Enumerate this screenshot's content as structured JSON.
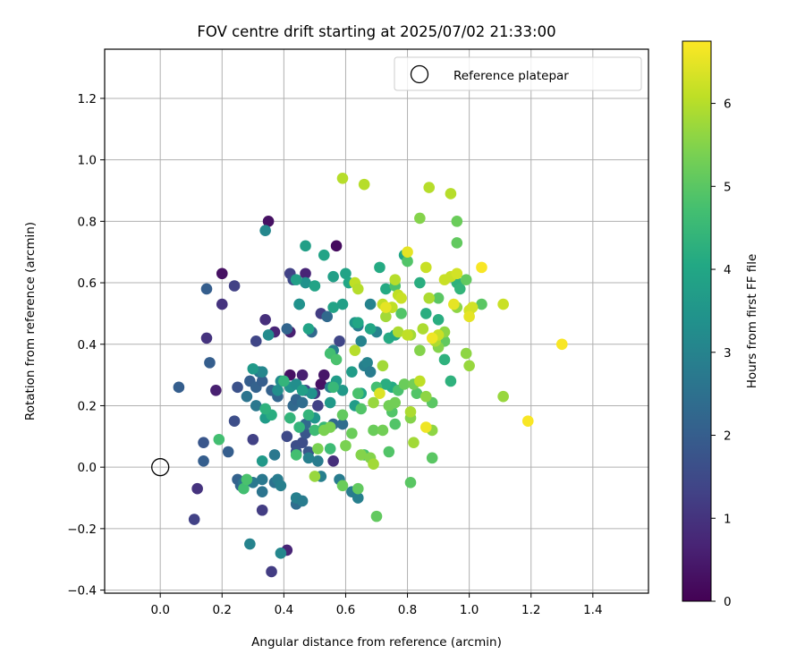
{
  "chart_data": {
    "type": "scatter",
    "title": "FOV centre drift starting at 2025/07/02 21:33:00",
    "xlabel": "Angular distance from reference (arcmin)",
    "ylabel": "Rotation from reference (arcmin)",
    "xlim": [
      -0.18,
      1.58
    ],
    "ylim": [
      -0.41,
      1.36
    ],
    "xticks": [
      0.0,
      0.2,
      0.4,
      0.6,
      0.8,
      1.0,
      1.2,
      1.4
    ],
    "xtick_labels": [
      "0.0",
      "0.2",
      "0.4",
      "0.6",
      "0.8",
      "1.0",
      "1.2",
      "1.4"
    ],
    "yticks": [
      -0.4,
      -0.2,
      0.0,
      0.2,
      0.4,
      0.6,
      0.8,
      1.0,
      1.2
    ],
    "ytick_labels": [
      "−0.4",
      "−0.2",
      "0.0",
      "0.2",
      "0.4",
      "0.6",
      "0.8",
      "1.0",
      "1.2"
    ],
    "grid": true,
    "legend": {
      "placement": "top-right",
      "entries": [
        "Reference platepar"
      ]
    },
    "reference_point": {
      "label": "Reference platepar",
      "x": 0.0,
      "y": 0.0
    },
    "colorbar": {
      "label": "Hours from first FF file",
      "colormap": "viridis",
      "range": [
        0,
        6.75
      ],
      "ticks": [
        0,
        1,
        2,
        3,
        4,
        5,
        6
      ],
      "tick_labels": [
        "0",
        "1",
        "2",
        "3",
        "4",
        "5",
        "6"
      ]
    },
    "points": [
      {
        "x": 0.2,
        "y": 0.63,
        "t": 0.3
      },
      {
        "x": 0.35,
        "y": 0.8,
        "t": 0.3
      },
      {
        "x": 0.57,
        "y": 0.72,
        "t": 0.2
      },
      {
        "x": 0.42,
        "y": 0.3,
        "t": 0.3
      },
      {
        "x": 0.52,
        "y": 0.27,
        "t": 0.3
      },
      {
        "x": 0.53,
        "y": 0.3,
        "t": 0.4
      },
      {
        "x": 0.41,
        "y": -0.27,
        "t": 0.7
      },
      {
        "x": 0.18,
        "y": 0.25,
        "t": 0.6
      },
      {
        "x": 0.46,
        "y": 0.3,
        "t": 0.6
      },
      {
        "x": 0.47,
        "y": 0.63,
        "t": 0.7
      },
      {
        "x": 0.2,
        "y": 0.53,
        "t": 1.0
      },
      {
        "x": 0.34,
        "y": 0.48,
        "t": 0.9
      },
      {
        "x": 0.37,
        "y": 0.44,
        "t": 0.7
      },
      {
        "x": 0.42,
        "y": 0.44,
        "t": 0.6
      },
      {
        "x": 0.52,
        "y": 0.5,
        "t": 1.2
      },
      {
        "x": 0.56,
        "y": 0.02,
        "t": 0.9
      },
      {
        "x": 0.58,
        "y": 0.41,
        "t": 1.4
      },
      {
        "x": 0.36,
        "y": -0.34,
        "t": 1.2
      },
      {
        "x": 0.12,
        "y": -0.07,
        "t": 1.0
      },
      {
        "x": 0.11,
        "y": -0.17,
        "t": 1.3
      },
      {
        "x": 0.15,
        "y": 0.42,
        "t": 1.0
      },
      {
        "x": 0.24,
        "y": 0.59,
        "t": 1.3
      },
      {
        "x": 0.42,
        "y": 0.63,
        "t": 1.3
      },
      {
        "x": 0.43,
        "y": 0.61,
        "t": 1.5
      },
      {
        "x": 0.5,
        "y": 0.24,
        "t": 1.1
      },
      {
        "x": 0.51,
        "y": 0.2,
        "t": 1.3
      },
      {
        "x": 0.47,
        "y": 0.25,
        "t": 1.4
      },
      {
        "x": 0.31,
        "y": 0.41,
        "t": 1.4
      },
      {
        "x": 0.3,
        "y": 0.09,
        "t": 1.3
      },
      {
        "x": 0.33,
        "y": -0.14,
        "t": 1.2
      },
      {
        "x": 0.41,
        "y": 0.1,
        "t": 1.5
      },
      {
        "x": 0.44,
        "y": 0.07,
        "t": 1.6
      },
      {
        "x": 0.46,
        "y": 0.08,
        "t": 1.6
      },
      {
        "x": 0.47,
        "y": 0.11,
        "t": 1.8
      },
      {
        "x": 0.24,
        "y": 0.15,
        "t": 1.6
      },
      {
        "x": 0.25,
        "y": 0.26,
        "t": 1.7
      },
      {
        "x": 0.44,
        "y": 0.05,
        "t": 1.7
      },
      {
        "x": 0.48,
        "y": 0.05,
        "t": 1.8
      },
      {
        "x": 0.06,
        "y": 0.26,
        "t": 2.0
      },
      {
        "x": 0.15,
        "y": 0.58,
        "t": 2.0
      },
      {
        "x": 0.16,
        "y": 0.34,
        "t": 2.0
      },
      {
        "x": 0.14,
        "y": 0.08,
        "t": 1.8
      },
      {
        "x": 0.14,
        "y": 0.02,
        "t": 2.0
      },
      {
        "x": 0.22,
        "y": 0.05,
        "t": 2.0
      },
      {
        "x": 0.25,
        "y": -0.04,
        "t": 2.1
      },
      {
        "x": 0.26,
        "y": -0.06,
        "t": 2.2
      },
      {
        "x": 0.29,
        "y": 0.28,
        "t": 2.0
      },
      {
        "x": 0.31,
        "y": 0.26,
        "t": 2.1
      },
      {
        "x": 0.33,
        "y": 0.28,
        "t": 2.0
      },
      {
        "x": 0.36,
        "y": 0.25,
        "t": 2.1
      },
      {
        "x": 0.38,
        "y": 0.23,
        "t": 2.2
      },
      {
        "x": 0.41,
        "y": 0.45,
        "t": 2.2
      },
      {
        "x": 0.43,
        "y": 0.2,
        "t": 2.3
      },
      {
        "x": 0.44,
        "y": 0.22,
        "t": 2.2
      },
      {
        "x": 0.46,
        "y": 0.21,
        "t": 2.4
      },
      {
        "x": 0.47,
        "y": 0.14,
        "t": 2.3
      },
      {
        "x": 0.49,
        "y": 0.44,
        "t": 2.3
      },
      {
        "x": 0.54,
        "y": 0.49,
        "t": 2.3
      },
      {
        "x": 0.56,
        "y": 0.14,
        "t": 2.3
      },
      {
        "x": 0.59,
        "y": 0.14,
        "t": 2.4
      },
      {
        "x": 0.44,
        "y": -0.12,
        "t": 2.4
      },
      {
        "x": 0.37,
        "y": -0.05,
        "t": 2.5
      },
      {
        "x": 0.33,
        "y": -0.08,
        "t": 2.6
      },
      {
        "x": 0.3,
        "y": -0.05,
        "t": 2.7
      },
      {
        "x": 0.27,
        "y": -0.05,
        "t": 2.6
      },
      {
        "x": 0.33,
        "y": -0.04,
        "t": 2.7
      },
      {
        "x": 0.32,
        "y": 0.31,
        "t": 2.6
      },
      {
        "x": 0.31,
        "y": 0.2,
        "t": 2.7
      },
      {
        "x": 0.28,
        "y": 0.23,
        "t": 2.6
      },
      {
        "x": 0.37,
        "y": 0.04,
        "t": 2.7
      },
      {
        "x": 0.38,
        "y": -0.04,
        "t": 2.8
      },
      {
        "x": 0.39,
        "y": -0.06,
        "t": 2.9
      },
      {
        "x": 0.44,
        "y": -0.1,
        "t": 2.9
      },
      {
        "x": 0.46,
        "y": -0.11,
        "t": 2.8
      },
      {
        "x": 0.48,
        "y": 0.03,
        "t": 2.9
      },
      {
        "x": 0.51,
        "y": 0.02,
        "t": 2.8
      },
      {
        "x": 0.52,
        "y": -0.03,
        "t": 2.9
      },
      {
        "x": 0.45,
        "y": 0.53,
        "t": 2.8
      },
      {
        "x": 0.55,
        "y": 0.26,
        "t": 2.9
      },
      {
        "x": 0.56,
        "y": 0.38,
        "t": 2.9
      },
      {
        "x": 0.58,
        "y": -0.04,
        "t": 2.8
      },
      {
        "x": 0.62,
        "y": -0.08,
        "t": 2.8
      },
      {
        "x": 0.64,
        "y": -0.1,
        "t": 2.9
      },
      {
        "x": 0.64,
        "y": 0.46,
        "t": 2.8
      },
      {
        "x": 0.65,
        "y": 0.41,
        "t": 3.0
      },
      {
        "x": 0.66,
        "y": 0.33,
        "t": 2.9
      },
      {
        "x": 0.67,
        "y": 0.34,
        "t": 3.0
      },
      {
        "x": 0.68,
        "y": 0.31,
        "t": 2.8
      },
      {
        "x": 0.68,
        "y": 0.53,
        "t": 3.0
      },
      {
        "x": 0.7,
        "y": 0.44,
        "t": 3.0
      },
      {
        "x": 0.29,
        "y": -0.25,
        "t": 3.0
      },
      {
        "x": 0.39,
        "y": -0.28,
        "t": 3.1
      },
      {
        "x": 0.34,
        "y": 0.77,
        "t": 3.1
      },
      {
        "x": 0.33,
        "y": 0.31,
        "t": 3.1
      },
      {
        "x": 0.35,
        "y": 0.43,
        "t": 3.2
      },
      {
        "x": 0.38,
        "y": 0.25,
        "t": 3.3
      },
      {
        "x": 0.39,
        "y": 0.28,
        "t": 3.2
      },
      {
        "x": 0.42,
        "y": 0.26,
        "t": 3.4
      },
      {
        "x": 0.44,
        "y": 0.27,
        "t": 3.3
      },
      {
        "x": 0.45,
        "y": 0.53,
        "t": 3.4
      },
      {
        "x": 0.47,
        "y": 0.6,
        "t": 3.4
      },
      {
        "x": 0.49,
        "y": 0.24,
        "t": 3.4
      },
      {
        "x": 0.5,
        "y": 0.16,
        "t": 3.5
      },
      {
        "x": 0.55,
        "y": 0.21,
        "t": 3.6
      },
      {
        "x": 0.57,
        "y": 0.28,
        "t": 3.7
      },
      {
        "x": 0.59,
        "y": 0.25,
        "t": 3.6
      },
      {
        "x": 0.62,
        "y": 0.31,
        "t": 3.7
      },
      {
        "x": 0.63,
        "y": 0.2,
        "t": 3.7
      },
      {
        "x": 0.63,
        "y": 0.47,
        "t": 3.5
      },
      {
        "x": 0.34,
        "y": 0.16,
        "t": 3.7
      },
      {
        "x": 0.33,
        "y": 0.02,
        "t": 3.6
      },
      {
        "x": 0.3,
        "y": 0.32,
        "t": 3.6
      },
      {
        "x": 0.44,
        "y": 0.61,
        "t": 3.8
      },
      {
        "x": 0.46,
        "y": 0.25,
        "t": 3.8
      },
      {
        "x": 0.47,
        "y": 0.72,
        "t": 3.8
      },
      {
        "x": 0.48,
        "y": 0.45,
        "t": 3.9
      },
      {
        "x": 0.5,
        "y": 0.59,
        "t": 3.9
      },
      {
        "x": 0.53,
        "y": 0.69,
        "t": 3.9
      },
      {
        "x": 0.56,
        "y": 0.62,
        "t": 3.8
      },
      {
        "x": 0.56,
        "y": 0.52,
        "t": 3.9
      },
      {
        "x": 0.59,
        "y": 0.53,
        "t": 3.8
      },
      {
        "x": 0.6,
        "y": 0.63,
        "t": 3.9
      },
      {
        "x": 0.61,
        "y": 0.6,
        "t": 4.0
      },
      {
        "x": 0.64,
        "y": 0.47,
        "t": 4.0
      },
      {
        "x": 0.65,
        "y": 0.24,
        "t": 4.0
      },
      {
        "x": 0.68,
        "y": 0.45,
        "t": 4.0
      },
      {
        "x": 0.71,
        "y": 0.65,
        "t": 4.1
      },
      {
        "x": 0.73,
        "y": 0.58,
        "t": 4.1
      },
      {
        "x": 0.74,
        "y": 0.42,
        "t": 4.1
      },
      {
        "x": 0.76,
        "y": 0.43,
        "t": 4.0
      },
      {
        "x": 0.75,
        "y": 0.26,
        "t": 4.1
      },
      {
        "x": 0.73,
        "y": 0.27,
        "t": 4.2
      },
      {
        "x": 0.79,
        "y": 0.69,
        "t": 4.0
      },
      {
        "x": 0.84,
        "y": 0.6,
        "t": 4.2
      },
      {
        "x": 0.86,
        "y": 0.5,
        "t": 4.2
      },
      {
        "x": 0.9,
        "y": 0.48,
        "t": 4.2
      },
      {
        "x": 0.92,
        "y": 0.35,
        "t": 4.3
      },
      {
        "x": 0.94,
        "y": 0.28,
        "t": 4.3
      },
      {
        "x": 0.96,
        "y": 0.6,
        "t": 4.3
      },
      {
        "x": 0.97,
        "y": 0.58,
        "t": 4.4
      },
      {
        "x": 0.36,
        "y": 0.17,
        "t": 4.2
      },
      {
        "x": 0.34,
        "y": 0.19,
        "t": 4.3
      },
      {
        "x": 0.4,
        "y": 0.28,
        "t": 4.4
      },
      {
        "x": 0.42,
        "y": 0.16,
        "t": 4.4
      },
      {
        "x": 0.45,
        "y": 0.13,
        "t": 4.4
      },
      {
        "x": 0.48,
        "y": 0.17,
        "t": 4.4
      },
      {
        "x": 0.53,
        "y": 0.13,
        "t": 4.5
      },
      {
        "x": 0.55,
        "y": 0.06,
        "t": 4.6
      },
      {
        "x": 0.56,
        "y": 0.26,
        "t": 4.5
      },
      {
        "x": 0.5,
        "y": 0.12,
        "t": 4.6
      },
      {
        "x": 0.44,
        "y": 0.04,
        "t": 4.7
      },
      {
        "x": 0.27,
        "y": -0.07,
        "t": 4.7
      },
      {
        "x": 0.28,
        "y": -0.04,
        "t": 4.8
      },
      {
        "x": 0.19,
        "y": 0.09,
        "t": 4.7
      },
      {
        "x": 0.55,
        "y": 0.37,
        "t": 4.7
      },
      {
        "x": 0.57,
        "y": 0.35,
        "t": 4.8
      },
      {
        "x": 0.64,
        "y": 0.24,
        "t": 4.8
      },
      {
        "x": 0.65,
        "y": 0.19,
        "t": 4.9
      },
      {
        "x": 0.66,
        "y": 0.04,
        "t": 4.8
      },
      {
        "x": 0.7,
        "y": 0.26,
        "t": 4.7
      },
      {
        "x": 0.74,
        "y": 0.05,
        "t": 4.9
      },
      {
        "x": 0.75,
        "y": 0.18,
        "t": 4.9
      },
      {
        "x": 0.76,
        "y": 0.14,
        "t": 4.9
      },
      {
        "x": 0.77,
        "y": 0.25,
        "t": 4.8
      },
      {
        "x": 0.76,
        "y": 0.59,
        "t": 4.8
      },
      {
        "x": 0.78,
        "y": 0.5,
        "t": 4.9
      },
      {
        "x": 0.8,
        "y": 0.67,
        "t": 4.9
      },
      {
        "x": 0.83,
        "y": 0.24,
        "t": 4.9
      },
      {
        "x": 0.81,
        "y": -0.05,
        "t": 5.0
      },
      {
        "x": 0.88,
        "y": 0.03,
        "t": 5.0
      },
      {
        "x": 0.88,
        "y": 0.21,
        "t": 5.0
      },
      {
        "x": 0.9,
        "y": 0.55,
        "t": 5.0
      },
      {
        "x": 0.92,
        "y": 0.41,
        "t": 5.1
      },
      {
        "x": 0.96,
        "y": 0.73,
        "t": 5.1
      },
      {
        "x": 0.96,
        "y": 0.8,
        "t": 5.2
      },
      {
        "x": 0.99,
        "y": 0.61,
        "t": 5.1
      },
      {
        "x": 1.04,
        "y": 0.53,
        "t": 5.0
      },
      {
        "x": 0.7,
        "y": -0.16,
        "t": 5.1
      },
      {
        "x": 0.64,
        "y": -0.07,
        "t": 5.1
      },
      {
        "x": 0.59,
        "y": -0.06,
        "t": 5.2
      },
      {
        "x": 0.59,
        "y": 0.17,
        "t": 5.1
      },
      {
        "x": 0.62,
        "y": 0.11,
        "t": 5.2
      },
      {
        "x": 0.69,
        "y": 0.12,
        "t": 5.2
      },
      {
        "x": 0.72,
        "y": 0.12,
        "t": 5.3
      },
      {
        "x": 0.74,
        "y": 0.2,
        "t": 5.3
      },
      {
        "x": 0.76,
        "y": 0.21,
        "t": 5.3
      },
      {
        "x": 0.79,
        "y": 0.27,
        "t": 5.2
      },
      {
        "x": 0.82,
        "y": 0.27,
        "t": 5.3
      },
      {
        "x": 0.53,
        "y": 0.12,
        "t": 5.4
      },
      {
        "x": 0.51,
        "y": 0.06,
        "t": 5.4
      },
      {
        "x": 0.55,
        "y": 0.13,
        "t": 5.4
      },
      {
        "x": 0.6,
        "y": 0.07,
        "t": 5.4
      },
      {
        "x": 0.65,
        "y": 0.04,
        "t": 5.5
      },
      {
        "x": 0.68,
        "y": 0.03,
        "t": 5.5
      },
      {
        "x": 0.81,
        "y": 0.16,
        "t": 5.5
      },
      {
        "x": 0.84,
        "y": 0.38,
        "t": 5.5
      },
      {
        "x": 0.84,
        "y": 0.81,
        "t": 5.5
      },
      {
        "x": 0.86,
        "y": 0.23,
        "t": 5.6
      },
      {
        "x": 0.88,
        "y": 0.12,
        "t": 5.6
      },
      {
        "x": 0.9,
        "y": 0.39,
        "t": 5.5
      },
      {
        "x": 0.92,
        "y": 0.44,
        "t": 5.6
      },
      {
        "x": 0.96,
        "y": 0.52,
        "t": 5.6
      },
      {
        "x": 0.99,
        "y": 0.37,
        "t": 5.6
      },
      {
        "x": 1.0,
        "y": 0.33,
        "t": 5.7
      },
      {
        "x": 1.11,
        "y": 0.23,
        "t": 5.7
      },
      {
        "x": 0.5,
        "y": -0.03,
        "t": 5.7
      },
      {
        "x": 0.69,
        "y": 0.01,
        "t": 5.8
      },
      {
        "x": 0.69,
        "y": 0.21,
        "t": 5.7
      },
      {
        "x": 0.72,
        "y": 0.33,
        "t": 5.8
      },
      {
        "x": 0.73,
        "y": 0.49,
        "t": 5.8
      },
      {
        "x": 0.75,
        "y": 0.52,
        "t": 5.8
      },
      {
        "x": 0.77,
        "y": 0.44,
        "t": 5.9
      },
      {
        "x": 0.81,
        "y": 0.43,
        "t": 5.8
      },
      {
        "x": 0.81,
        "y": 0.18,
        "t": 5.9
      },
      {
        "x": 0.82,
        "y": 0.08,
        "t": 5.8
      },
      {
        "x": 0.85,
        "y": 0.45,
        "t": 5.9
      },
      {
        "x": 0.87,
        "y": 0.55,
        "t": 5.9
      },
      {
        "x": 0.89,
        "y": 0.41,
        "t": 5.9
      },
      {
        "x": 0.94,
        "y": 0.89,
        "t": 6.0
      },
      {
        "x": 0.87,
        "y": 0.91,
        "t": 6.0
      },
      {
        "x": 0.66,
        "y": 0.92,
        "t": 6.0
      },
      {
        "x": 0.59,
        "y": 0.94,
        "t": 6.0
      },
      {
        "x": 0.63,
        "y": 0.38,
        "t": 6.0
      },
      {
        "x": 0.63,
        "y": 0.6,
        "t": 6.1
      },
      {
        "x": 0.64,
        "y": 0.58,
        "t": 6.0
      },
      {
        "x": 0.72,
        "y": 0.53,
        "t": 6.1
      },
      {
        "x": 0.75,
        "y": 0.52,
        "t": 6.1
      },
      {
        "x": 0.76,
        "y": 0.61,
        "t": 6.0
      },
      {
        "x": 0.77,
        "y": 0.56,
        "t": 6.1
      },
      {
        "x": 0.78,
        "y": 0.55,
        "t": 6.2
      },
      {
        "x": 0.8,
        "y": 0.43,
        "t": 6.1
      },
      {
        "x": 0.84,
        "y": 0.28,
        "t": 6.1
      },
      {
        "x": 0.86,
        "y": 0.65,
        "t": 6.2
      },
      {
        "x": 0.9,
        "y": 0.43,
        "t": 6.2
      },
      {
        "x": 0.92,
        "y": 0.61,
        "t": 6.2
      },
      {
        "x": 0.94,
        "y": 0.62,
        "t": 6.2
      },
      {
        "x": 0.96,
        "y": 0.63,
        "t": 6.3
      },
      {
        "x": 1.0,
        "y": 0.51,
        "t": 6.3
      },
      {
        "x": 1.01,
        "y": 0.52,
        "t": 6.3
      },
      {
        "x": 1.11,
        "y": 0.53,
        "t": 6.2
      },
      {
        "x": 0.71,
        "y": 0.24,
        "t": 6.4
      },
      {
        "x": 0.8,
        "y": 0.7,
        "t": 6.5
      },
      {
        "x": 0.86,
        "y": 0.13,
        "t": 6.6
      },
      {
        "x": 0.88,
        "y": 0.42,
        "t": 6.6
      },
      {
        "x": 0.95,
        "y": 0.53,
        "t": 6.5
      },
      {
        "x": 1.0,
        "y": 0.49,
        "t": 6.5
      },
      {
        "x": 1.04,
        "y": 0.65,
        "t": 6.7
      },
      {
        "x": 1.19,
        "y": 0.15,
        "t": 6.7
      },
      {
        "x": 1.3,
        "y": 0.4,
        "t": 6.7
      },
      {
        "x": 0.73,
        "y": 0.52,
        "t": 6.5
      }
    ]
  }
}
